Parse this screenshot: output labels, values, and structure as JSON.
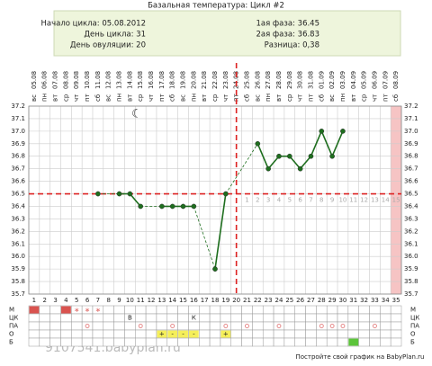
{
  "chart_data": {
    "type": "line",
    "title": "Базальная температура: Цикл #2",
    "info_left": [
      "Начало цикла: 05.08.2012",
      "День цикла: 31",
      "День овуляции: 20"
    ],
    "info_right": [
      "1ая фаза: 36.45",
      "2ая фаза: 36.83",
      "Разница: 0,38"
    ],
    "weekdays": [
      "вс",
      "пн",
      "вт",
      "ср",
      "чт",
      "пт",
      "сб",
      "вс",
      "пн",
      "вт",
      "ср",
      "чт",
      "пт",
      "сб",
      "вс",
      "пн",
      "вт",
      "ср",
      "чт",
      "пт",
      "сб",
      "вс",
      "пн",
      "вт",
      "ср",
      "чт",
      "пт",
      "сб",
      "вс",
      "пн",
      "вт",
      "ср",
      "чт",
      "пт",
      "сб"
    ],
    "dates": [
      "05.08",
      "06.08",
      "07.08",
      "08.08",
      "09.08",
      "10.08",
      "11.08",
      "12.08",
      "13.08",
      "14.08",
      "15.08",
      "16.08",
      "17.08",
      "18.08",
      "19.08",
      "20.08",
      "21.08",
      "22.08",
      "23.08",
      "24.08",
      "25.08",
      "26.08",
      "27.08",
      "28.08",
      "29.08",
      "30.08",
      "31.08",
      "01.09",
      "02.09",
      "03.09",
      "04.09",
      "05.09",
      "06.09",
      "07.09",
      "08.09"
    ],
    "days": [
      1,
      2,
      3,
      4,
      5,
      6,
      7,
      8,
      9,
      10,
      11,
      12,
      13,
      14,
      15,
      16,
      17,
      18,
      19,
      20,
      21,
      22,
      23,
      24,
      25,
      26,
      27,
      28,
      29,
      30,
      31,
      32,
      33,
      34,
      35
    ],
    "values": [
      null,
      null,
      null,
      null,
      null,
      null,
      36.5,
      null,
      36.5,
      36.5,
      36.4,
      null,
      36.4,
      36.4,
      36.4,
      36.4,
      null,
      35.9,
      36.5,
      null,
      null,
      36.9,
      36.7,
      36.8,
      36.8,
      36.7,
      36.8,
      37.0,
      36.8,
      37.0,
      null,
      null,
      null,
      null,
      null
    ],
    "color": "#1e6e1e",
    "ylim": [
      35.7,
      37.2
    ],
    "yticks": [
      35.7,
      35.8,
      35.9,
      {
        "value": 36,
        "label": "36.0"
      },
      36.1,
      36.2,
      36.3,
      36.4,
      36.5,
      36.6,
      36.7,
      36.8,
      36.9,
      {
        "value": 37,
        "label": "37.0"
      },
      37.1,
      37.2
    ],
    "coverline": 36.5,
    "ovulation_day": 20,
    "highlight_day": 35,
    "luteal_day_labels": [
      1,
      2,
      3,
      4,
      5,
      6,
      7,
      8,
      9,
      10,
      11,
      12,
      13,
      14,
      15
    ],
    "row_labels": [
      "М",
      "ЦК",
      "ПА",
      "О",
      "Б"
    ],
    "m_heavy_days": [
      1,
      4
    ],
    "m_marks": [
      null,
      null,
      null,
      null,
      "*",
      "*",
      "*",
      null,
      null,
      null,
      null,
      null,
      null,
      null,
      null,
      null,
      null,
      null,
      null,
      null,
      null,
      null,
      null,
      null,
      null,
      null,
      null,
      null,
      null,
      null,
      null,
      null,
      null,
      null,
      null
    ],
    "ck_marks": [
      null,
      null,
      null,
      null,
      null,
      null,
      null,
      null,
      null,
      "В",
      null,
      null,
      null,
      null,
      null,
      "К",
      null,
      null,
      null,
      null,
      null,
      null,
      null,
      null,
      null,
      null,
      null,
      null,
      null,
      null,
      null,
      null,
      null,
      null,
      null
    ],
    "pa_days": [
      6,
      11,
      14,
      19,
      21,
      24,
      28,
      29,
      30,
      33
    ],
    "o_marks": [
      null,
      null,
      null,
      null,
      null,
      null,
      null,
      null,
      null,
      null,
      null,
      null,
      "+",
      "-",
      "-",
      "-",
      null,
      null,
      "+",
      null,
      null,
      null,
      null,
      null,
      null,
      null,
      null,
      null,
      null,
      null,
      null,
      null,
      null,
      null,
      null
    ],
    "b_days": [
      31
    ],
    "watermark": "9107541.babyplan.ru",
    "footer": "Постройте свой график на BabyPlan.ru"
  }
}
